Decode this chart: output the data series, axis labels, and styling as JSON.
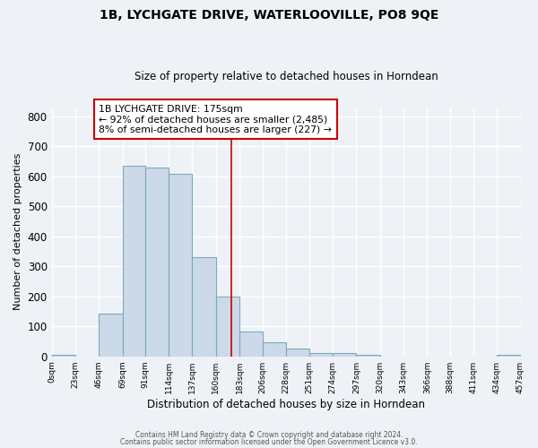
{
  "title": "1B, LYCHGATE DRIVE, WATERLOOVILLE, PO8 9QE",
  "subtitle": "Size of property relative to detached houses in Horndean",
  "xlabel": "Distribution of detached houses by size in Horndean",
  "ylabel": "Number of detached properties",
  "bin_edges": [
    0,
    23,
    46,
    69,
    91,
    114,
    137,
    160,
    183,
    206,
    228,
    251,
    274,
    297,
    320,
    343,
    366,
    388,
    411,
    434,
    457
  ],
  "bin_labels": [
    "0sqm",
    "23sqm",
    "46sqm",
    "69sqm",
    "91sqm",
    "114sqm",
    "137sqm",
    "160sqm",
    "183sqm",
    "206sqm",
    "228sqm",
    "251sqm",
    "274sqm",
    "297sqm",
    "320sqm",
    "343sqm",
    "366sqm",
    "388sqm",
    "411sqm",
    "434sqm",
    "457sqm"
  ],
  "counts": [
    5,
    0,
    143,
    635,
    630,
    608,
    330,
    200,
    84,
    46,
    27,
    10,
    10,
    5,
    0,
    0,
    0,
    0,
    0,
    5
  ],
  "bar_facecolor": "#ccd9e8",
  "bar_edgecolor": "#7aaabb",
  "vline_x": 175,
  "vline_color": "#cc0000",
  "annotation_title": "1B LYCHGATE DRIVE: 175sqm",
  "annotation_line1": "← 92% of detached houses are smaller (2,485)",
  "annotation_line2": "8% of semi-detached houses are larger (227) →",
  "annotation_box_edgecolor": "#cc0000",
  "annotation_box_facecolor": "#ffffff",
  "ylim": [
    0,
    830
  ],
  "background_color": "#eef2f7",
  "footer1": "Contains HM Land Registry data © Crown copyright and database right 2024.",
  "footer2": "Contains public sector information licensed under the Open Government Licence v3.0."
}
